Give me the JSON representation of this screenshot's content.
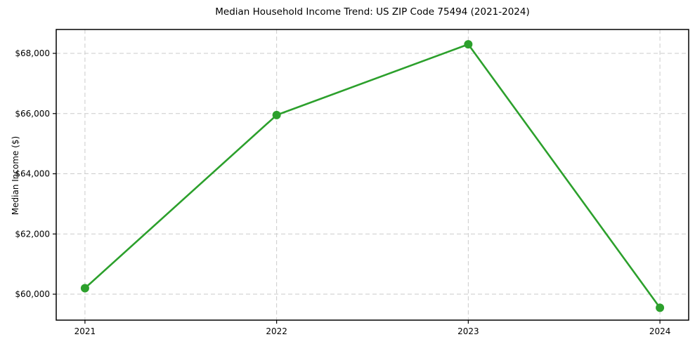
{
  "chart_data": {
    "type": "line",
    "title": "Median Household Income Trend: US ZIP Code 75494 (2021-2024)",
    "xlabel": "",
    "ylabel": "Median Income ($)",
    "x": [
      2021,
      2022,
      2023,
      2024
    ],
    "series": [
      {
        "name": "Median Household Income",
        "values": [
          60200,
          65950,
          68300,
          59550
        ],
        "color": "#2ca02c",
        "marker": "circle"
      }
    ],
    "x_tick_labels": [
      "2021",
      "2022",
      "2023",
      "2024"
    ],
    "y_ticks": [
      60000,
      62000,
      64000,
      66000,
      68000
    ],
    "y_tick_labels": [
      "$60,000",
      "$62,000",
      "$64,000",
      "$66,000",
      "$68,000"
    ],
    "xlim": [
      2020.85,
      2024.15
    ],
    "ylim": [
      59138,
      68793
    ],
    "grid": true,
    "grid_style": "dashed",
    "legend": false,
    "colors": {
      "line": "#2ca02c",
      "grid": "#cbcbcb",
      "spine": "#000000",
      "background": "#ffffff",
      "text": "#000000"
    }
  }
}
